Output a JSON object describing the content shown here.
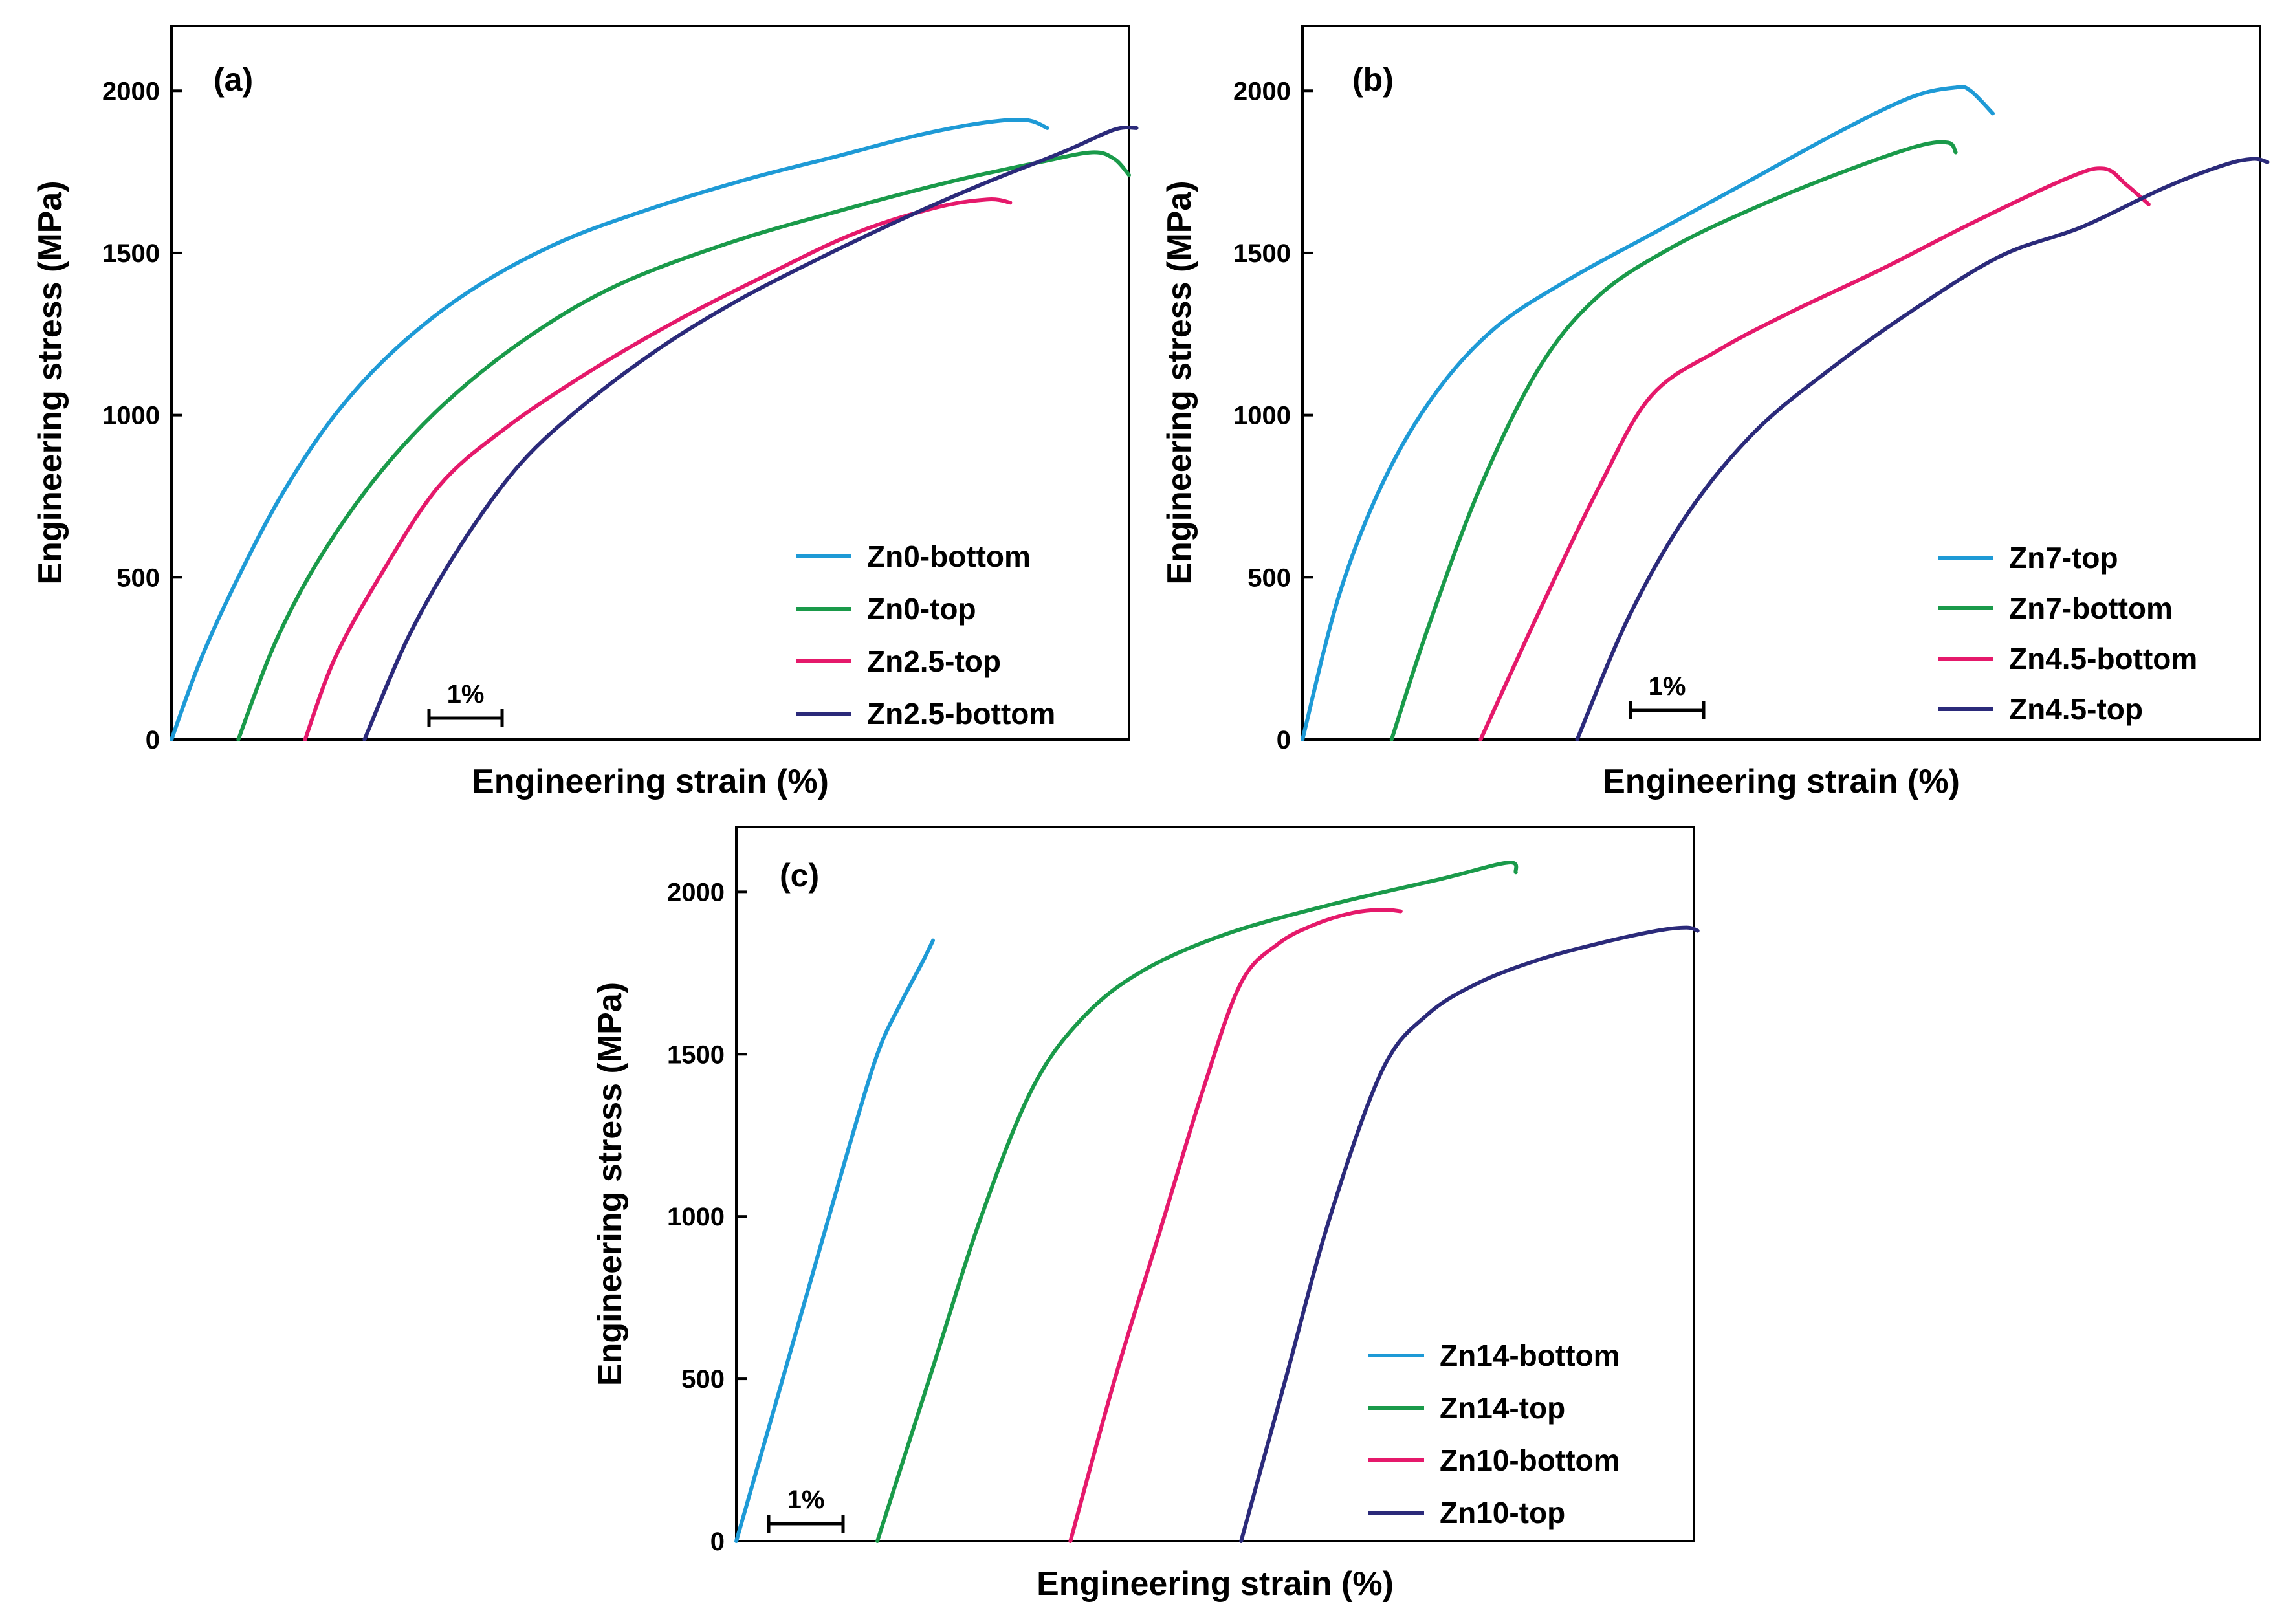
{
  "chart_data": [
    {
      "type": "line",
      "panel_label": "(a)",
      "xlabel": "Engineering strain (%)",
      "ylabel": "Engineering stress (MPa)",
      "ylim": [
        0,
        2200
      ],
      "xlim": [
        0,
        12.9
      ],
      "yticks": [
        "0",
        "500",
        "1000",
        "1500",
        "2000"
      ],
      "scale_bar_label": "1%",
      "legend_position": "bottom-right",
      "series": [
        {
          "name": "Zn0-bottom",
          "color": "#1e9ad6",
          "x": [
            0,
            0.4,
            0.9,
            1.5,
            2.2,
            3.0,
            4.0,
            5.2,
            6.5,
            7.8,
            9.0,
            10.0,
            10.9,
            11.5,
            11.8
          ],
          "y": [
            0,
            250,
            500,
            760,
            1000,
            1200,
            1380,
            1530,
            1640,
            1730,
            1800,
            1860,
            1900,
            1910,
            1885
          ]
        },
        {
          "name": "Zn0-top",
          "color": "#1a9a4a",
          "x": [
            0.9,
            1.4,
            2.0,
            2.8,
            3.7,
            4.8,
            6.0,
            7.5,
            9.0,
            10.5,
            11.7,
            12.4,
            12.7,
            12.9
          ],
          "y": [
            0,
            300,
            560,
            820,
            1040,
            1240,
            1400,
            1530,
            1630,
            1720,
            1780,
            1810,
            1790,
            1740
          ]
        },
        {
          "name": "Zn2.5-top",
          "color": "#e5196b",
          "x": [
            1.8,
            2.2,
            2.8,
            3.6,
            4.5,
            5.6,
            6.8,
            8.0,
            9.2,
            10.3,
            11.0,
            11.3
          ],
          "y": [
            0,
            250,
            500,
            780,
            960,
            1130,
            1290,
            1430,
            1560,
            1640,
            1665,
            1655
          ]
        },
        {
          "name": "Zn2.5-bottom",
          "color": "#2b2a7a",
          "x": [
            2.6,
            3.2,
            3.9,
            4.7,
            5.6,
            6.6,
            7.6,
            8.7,
            9.8,
            10.9,
            12.0,
            12.7,
            13.0
          ],
          "y": [
            0,
            320,
            600,
            850,
            1040,
            1210,
            1350,
            1480,
            1600,
            1710,
            1810,
            1880,
            1885
          ]
        }
      ]
    },
    {
      "type": "line",
      "panel_label": "(b)",
      "xlabel": "Engineering strain (%)",
      "ylabel": "Engineering stress (MPa)",
      "ylim": [
        0,
        2200
      ],
      "xlim": [
        0,
        12.9
      ],
      "yticks": [
        "0",
        "500",
        "1000",
        "1500",
        "2000"
      ],
      "scale_bar_label": "1%",
      "legend_position": "bottom-right",
      "series": [
        {
          "name": "Zn7-top",
          "color": "#1e9ad6",
          "x": [
            0,
            0.5,
            1.1,
            1.8,
            2.6,
            3.6,
            4.8,
            6.0,
            7.2,
            8.2,
            8.8,
            9.0,
            9.3
          ],
          "y": [
            0,
            450,
            800,
            1070,
            1270,
            1420,
            1570,
            1720,
            1870,
            1980,
            2010,
            2000,
            1930
          ]
        },
        {
          "name": "Zn7-bottom",
          "color": "#1a9a4a",
          "x": [
            1.2,
            1.7,
            2.4,
            3.2,
            4.0,
            5.0,
            6.2,
            7.4,
            8.3,
            8.7,
            8.8
          ],
          "y": [
            0,
            350,
            780,
            1150,
            1370,
            1520,
            1650,
            1760,
            1830,
            1840,
            1810
          ]
        },
        {
          "name": "Zn4.5-bottom",
          "color": "#e5196b",
          "x": [
            2.4,
            3.2,
            4.0,
            4.7,
            5.6,
            6.6,
            7.8,
            9.0,
            10.3,
            10.8,
            11.1,
            11.4
          ],
          "y": [
            0,
            400,
            780,
            1060,
            1200,
            1320,
            1450,
            1590,
            1730,
            1760,
            1710,
            1650
          ]
        },
        {
          "name": "Zn4.5-top",
          "color": "#2b2a7a",
          "x": [
            3.7,
            4.4,
            5.2,
            6.1,
            7.1,
            8.2,
            9.4,
            10.5,
            11.6,
            12.4,
            12.8,
            13.0
          ],
          "y": [
            0,
            380,
            700,
            950,
            1140,
            1320,
            1490,
            1580,
            1700,
            1770,
            1790,
            1780
          ]
        }
      ]
    },
    {
      "type": "line",
      "panel_label": "(c)",
      "xlabel": "Engineering strain (%)",
      "ylabel": "Engineering stress (MPa)",
      "ylim": [
        0,
        2200
      ],
      "xlim": [
        0,
        12.9
      ],
      "yticks": [
        "0",
        "500",
        "1000",
        "1500",
        "2000"
      ],
      "scale_bar_label": "1%",
      "legend_position": "bottom-right",
      "series": [
        {
          "name": "Zn14-bottom",
          "color": "#1e9ad6",
          "x": [
            0,
            0.5,
            1.0,
            1.5,
            1.9,
            2.2,
            2.5,
            2.65
          ],
          "y": [
            0,
            400,
            800,
            1200,
            1500,
            1650,
            1780,
            1850
          ]
        },
        {
          "name": "Zn14-top",
          "color": "#1a9a4a",
          "x": [
            1.9,
            2.6,
            3.3,
            4.0,
            4.7,
            5.5,
            6.6,
            8.0,
            9.5,
            10.4,
            10.5
          ],
          "y": [
            0,
            500,
            1000,
            1400,
            1620,
            1760,
            1870,
            1960,
            2040,
            2090,
            2060
          ]
        },
        {
          "name": "Zn10-bottom",
          "color": "#e5196b",
          "x": [
            4.5,
            5.1,
            5.7,
            6.3,
            6.8,
            7.3,
            7.8,
            8.3,
            8.7,
            8.95
          ],
          "y": [
            0,
            500,
            950,
            1400,
            1720,
            1840,
            1900,
            1935,
            1945,
            1940
          ]
        },
        {
          "name": "Zn10-top",
          "color": "#2b2a7a",
          "x": [
            6.8,
            7.4,
            8.0,
            8.7,
            9.3,
            10.0,
            10.8,
            11.6,
            12.4,
            12.8,
            12.95
          ],
          "y": [
            0,
            500,
            1000,
            1450,
            1620,
            1720,
            1790,
            1840,
            1880,
            1890,
            1880
          ]
        }
      ]
    }
  ]
}
